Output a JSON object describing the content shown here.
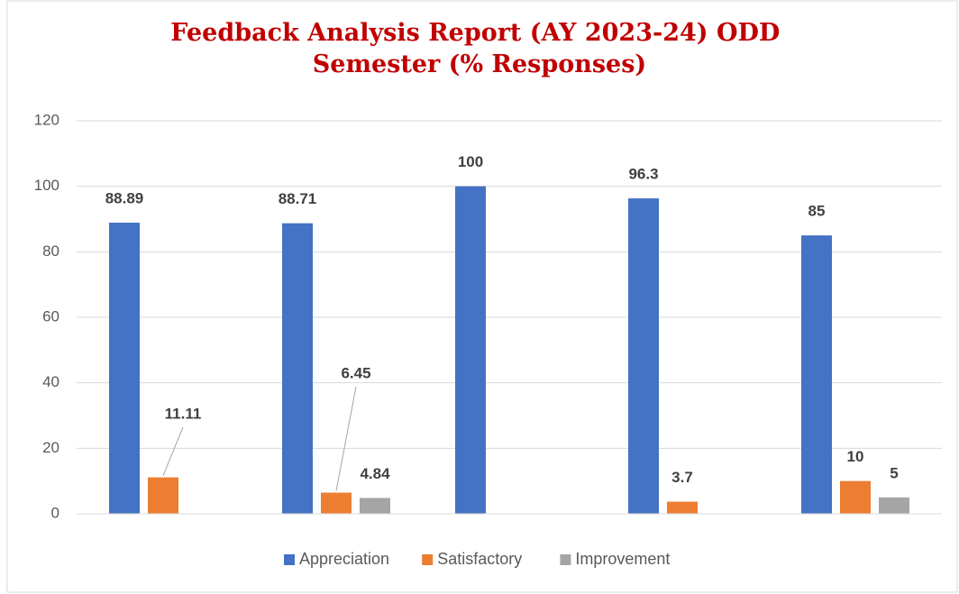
{
  "chart_data": {
    "type": "bar",
    "title": [
      "Feedback Analysis Report (AY 2023-24) ODD",
      "Semester (% Responses)"
    ],
    "categories": [
      null,
      null,
      null,
      null,
      null
    ],
    "series": [
      {
        "name": "Appreciation",
        "color": "#4472c4",
        "values": [
          88.89,
          88.71,
          100,
          96.3,
          85
        ]
      },
      {
        "name": "Satisfactory",
        "color": "#ed7d31",
        "values": [
          11.11,
          6.45,
          null,
          3.7,
          10
        ]
      },
      {
        "name": "Improvement",
        "color": "#a5a5a5",
        "values": [
          null,
          4.84,
          null,
          null,
          5
        ]
      }
    ],
    "ylim": [
      0,
      120
    ],
    "yticks": [
      0,
      20,
      40,
      60,
      80,
      100,
      120
    ],
    "grid": true,
    "legend": "bottom"
  }
}
